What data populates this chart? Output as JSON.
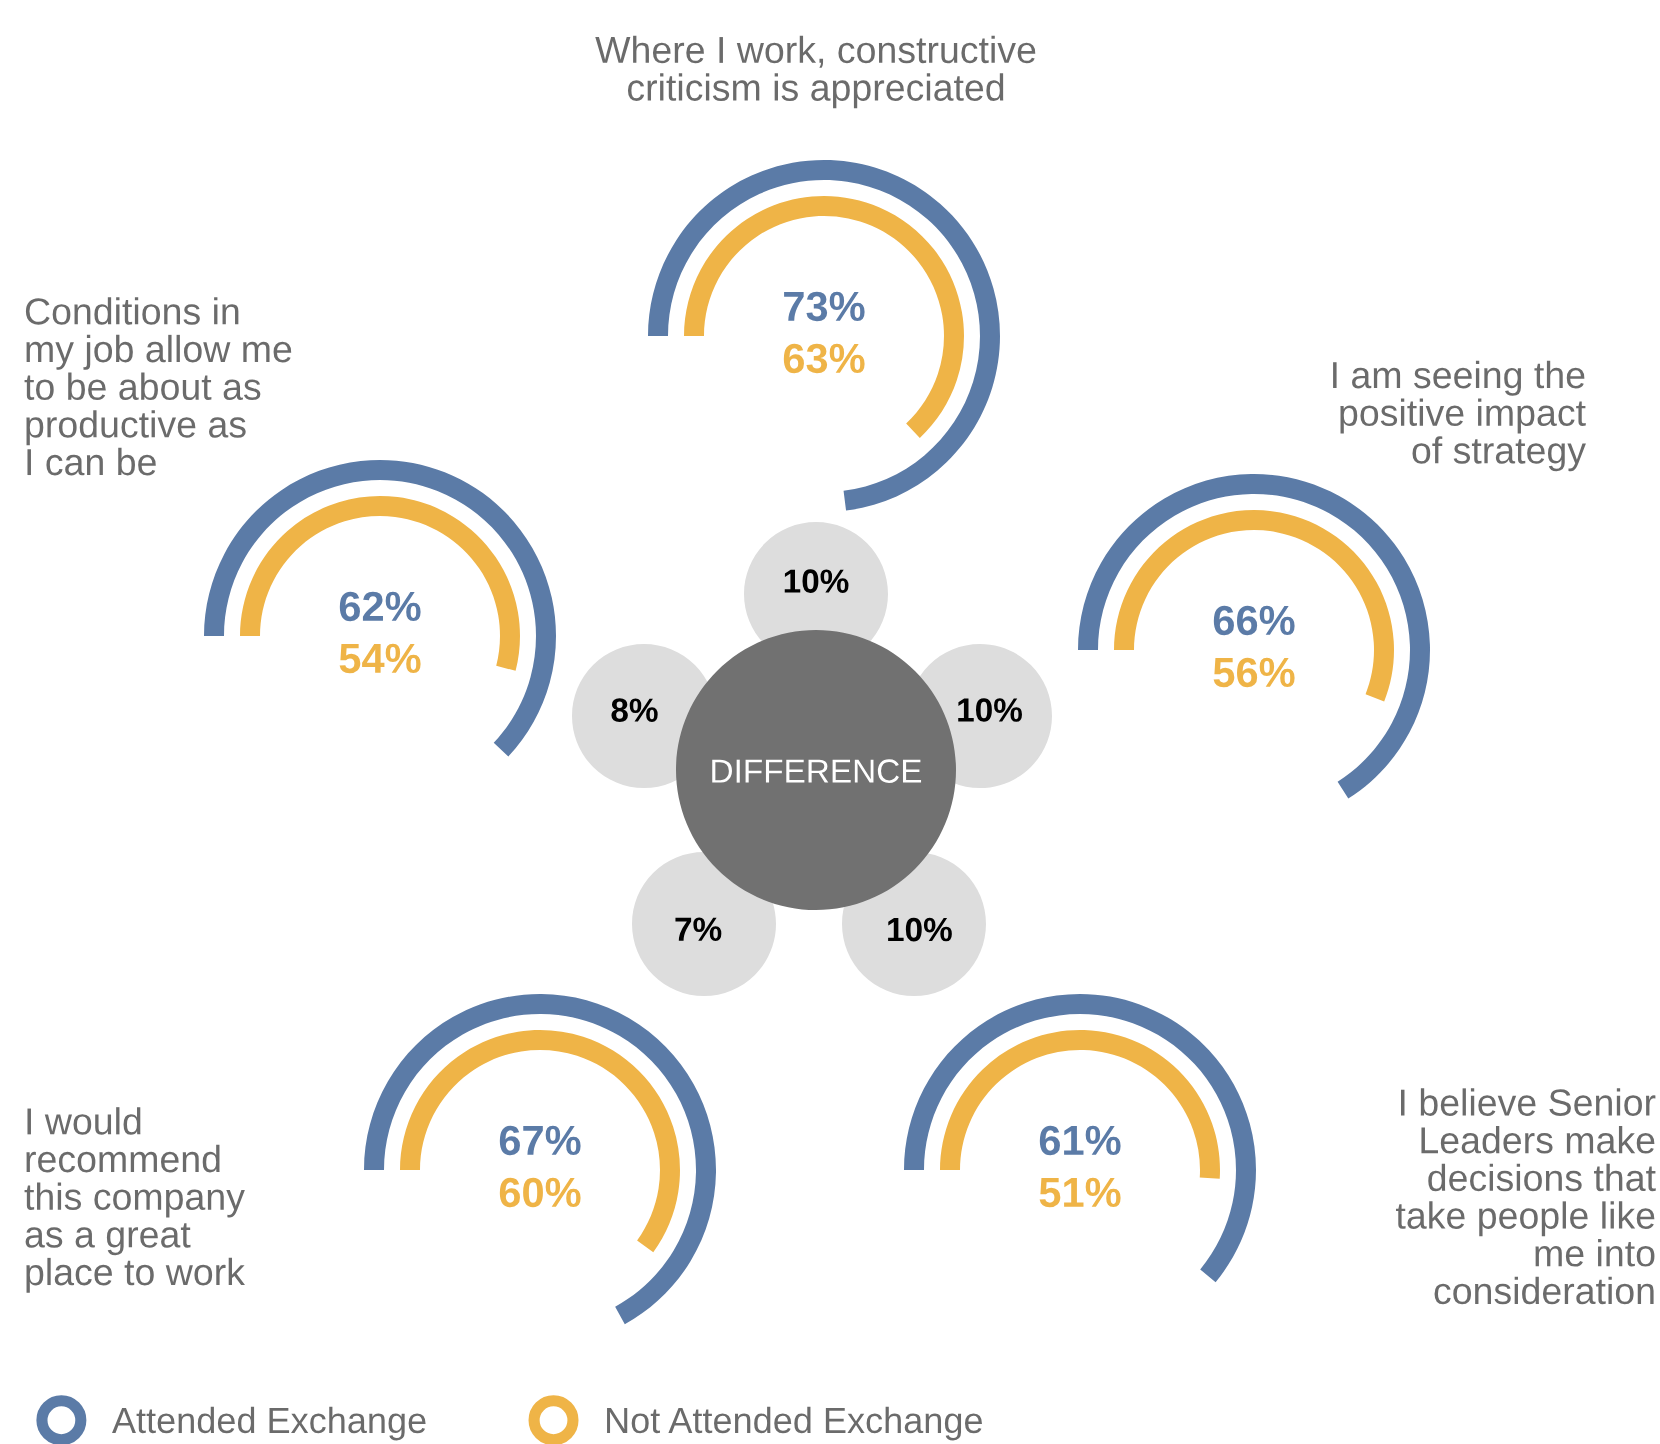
{
  "chart_data": {
    "type": "other",
    "categories": [
      "Where I work, constructive\ncriticism is appreciated",
      "I am seeing the\npositive impact\nof strategy",
      "I believe Senior\nLeaders make\ndecisions that\ntake people like\nme into\nconsideration",
      "I would\nrecommend\nthis company\nas a great\nplace to work",
      "Conditions in\nmy job allow me\nto be about as\nproductive as\nI can be"
    ],
    "series": [
      {
        "name": "Attended Exchange",
        "type": "donut",
        "color": "#5b7ba7",
        "values": [
          73,
          66,
          61,
          67,
          62
        ],
        "value_labels": [
          "73%",
          "66%",
          "61%",
          "67%",
          "62%"
        ]
      },
      {
        "name": "Not Attended Exchange",
        "type": "donut",
        "color": "#efb447",
        "values": [
          63,
          56,
          51,
          60,
          54
        ],
        "value_labels": [
          "63%",
          "56%",
          "51%",
          "60%",
          "54%"
        ]
      },
      {
        "name": "DIFFERENCE",
        "type": "other",
        "color": "#dddddd",
        "values": [
          10,
          10,
          10,
          7,
          8
        ],
        "value_labels": [
          "10%",
          "10%",
          "10%",
          "7%",
          "8%"
        ]
      }
    ],
    "data_labels": true,
    "legend": "bottom left"
  }
}
